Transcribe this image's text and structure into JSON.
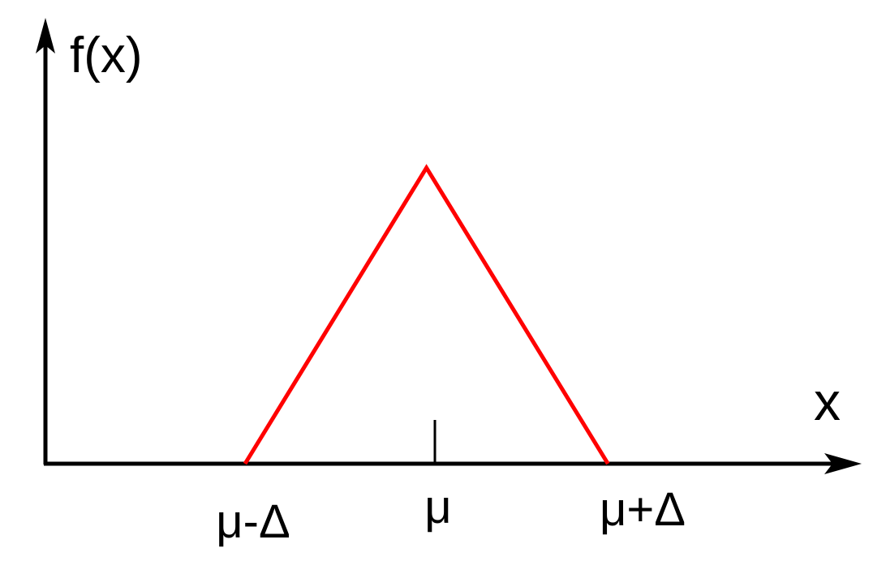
{
  "chart_data": {
    "type": "line",
    "title": "",
    "xlabel": "x",
    "ylabel": "f(x)",
    "grid": false,
    "legend": "none",
    "x_tick_labels": [
      "μ-Δ",
      "μ",
      "μ+Δ"
    ],
    "x_ticks": [
      -1,
      0,
      1
    ],
    "xlim": [
      -2.1,
      2.3
    ],
    "ylim": [
      0,
      1.25
    ],
    "series": [
      {
        "x": [
          -1,
          0,
          1
        ],
        "y": [
          0,
          1,
          0
        ],
        "color": "#ff0000"
      }
    ],
    "axis_color": "#000000"
  }
}
